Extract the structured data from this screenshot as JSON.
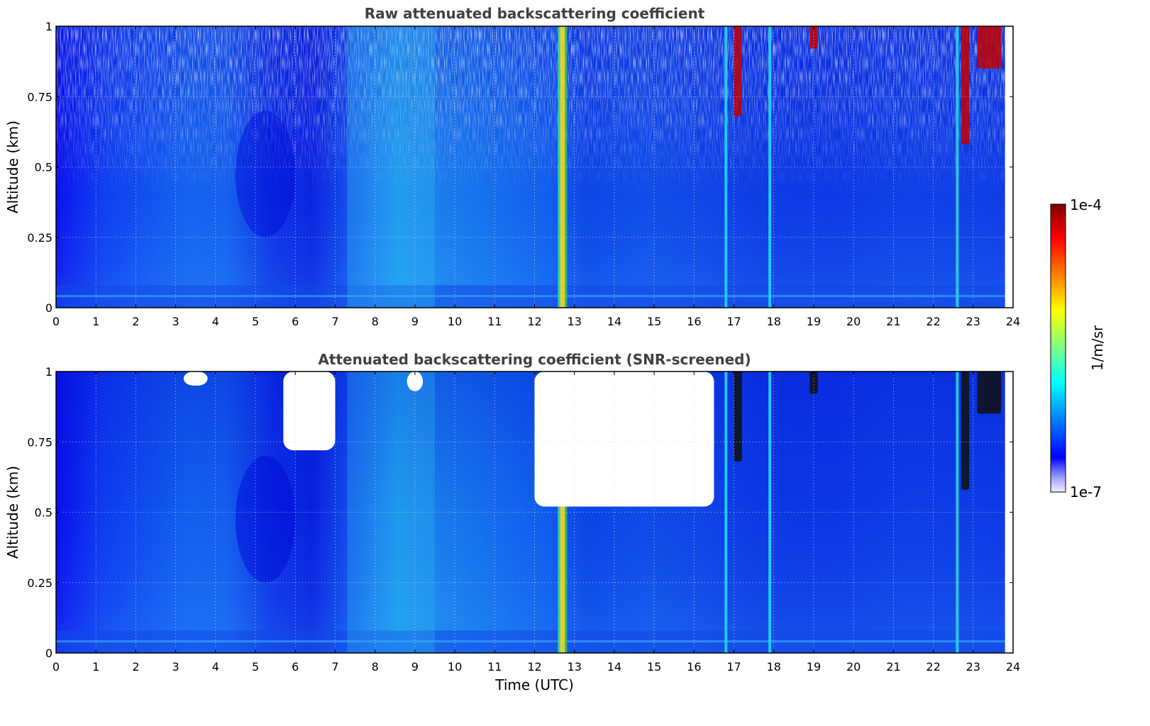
{
  "chart_data": [
    {
      "type": "heatmap",
      "title": "Raw attenuated backscattering coefficient",
      "ylabel": "Altitude (km)",
      "xlabel": "",
      "xlim": [
        0,
        24
      ],
      "ylim": [
        0,
        1
      ],
      "x_ticks": [
        "0",
        "1",
        "2",
        "3",
        "4",
        "5",
        "6",
        "7",
        "8",
        "9",
        "10",
        "11",
        "12",
        "13",
        "14",
        "15",
        "16",
        "17",
        "18",
        "19",
        "20",
        "21",
        "22",
        "23",
        "24"
      ],
      "y_ticks": [
        "0",
        "0.25",
        "0.5",
        "0.75",
        "1"
      ],
      "grid": true,
      "data_end_time": 23.8,
      "features": [
        {
          "kind": "vertical_streak",
          "time": 12.7,
          "level": "high"
        },
        {
          "kind": "vertical_streak",
          "time": 16.8,
          "level": "medium"
        },
        {
          "kind": "vertical_streak",
          "time": 17.9,
          "level": "medium"
        },
        {
          "kind": "vertical_streak",
          "time": 22.6,
          "level": "medium"
        },
        {
          "kind": "cloud",
          "time_range": [
            17.0,
            17.2
          ],
          "alt_range": [
            0.68,
            1.0
          ],
          "level": "very-high"
        },
        {
          "kind": "cloud",
          "time_range": [
            18.9,
            19.1
          ],
          "alt_range": [
            0.92,
            1.0
          ],
          "level": "very-high"
        },
        {
          "kind": "cloud",
          "time_range": [
            22.7,
            22.9
          ],
          "alt_range": [
            0.58,
            1.0
          ],
          "level": "very-high"
        },
        {
          "kind": "cloud",
          "time_range": [
            23.1,
            23.7
          ],
          "alt_range": [
            0.85,
            1.0
          ],
          "level": "very-high"
        },
        {
          "kind": "aerosol_plume",
          "time_range": [
            7.3,
            9.5
          ],
          "alt_range": [
            0.0,
            1.0
          ],
          "level": "medium"
        },
        {
          "kind": "clean_air",
          "time_range": [
            4.5,
            6.0
          ],
          "alt_range": [
            0.25,
            0.7
          ],
          "level": "low"
        }
      ]
    },
    {
      "type": "heatmap",
      "title": "Attenuated backscattering coefficient (SNR-screened)",
      "ylabel": "Altitude (km)",
      "xlabel": "Time (UTC)",
      "xlim": [
        0,
        24
      ],
      "ylim": [
        0,
        1
      ],
      "x_ticks": [
        "0",
        "1",
        "2",
        "3",
        "4",
        "5",
        "6",
        "7",
        "8",
        "9",
        "10",
        "11",
        "12",
        "13",
        "14",
        "15",
        "16",
        "17",
        "18",
        "19",
        "20",
        "21",
        "22",
        "23",
        "24"
      ],
      "y_ticks": [
        "0",
        "0.25",
        "0.5",
        "0.75",
        "1"
      ],
      "grid": true,
      "data_end_time": 23.8,
      "screened_regions": [
        {
          "time_range": [
            12.0,
            16.5
          ],
          "alt_range": [
            0.52,
            1.0
          ]
        },
        {
          "time_range": [
            5.7,
            7.0
          ],
          "alt_range": [
            0.72,
            1.0
          ]
        },
        {
          "time_range": [
            3.2,
            3.8
          ],
          "alt_range": [
            0.95,
            1.0
          ]
        },
        {
          "time_range": [
            8.8,
            9.2
          ],
          "alt_range": [
            0.93,
            1.0
          ]
        }
      ]
    }
  ],
  "colorbar": {
    "label": "1/m/sr",
    "max_label": "1e-4",
    "min_label": "1e-7",
    "scale": "log",
    "colormap": "jet",
    "colors": [
      "#f0f0ff",
      "#0000ff",
      "#00ffff",
      "#ffff00",
      "#ff0000",
      "#800000"
    ]
  }
}
